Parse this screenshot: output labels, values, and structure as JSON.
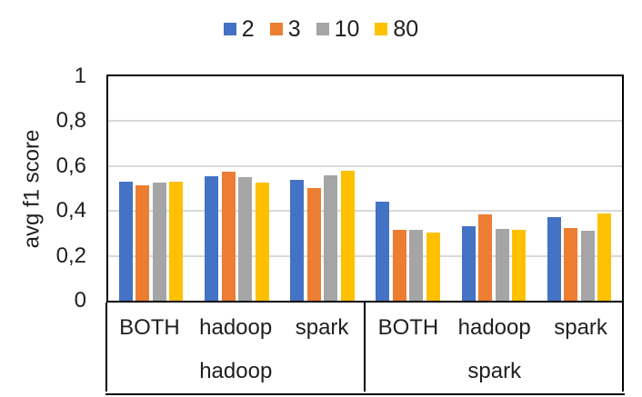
{
  "chart_data": {
    "type": "bar",
    "title": "",
    "ylabel": "avg f1 score",
    "ylim": [
      0,
      1
    ],
    "grid": true,
    "legend_position": "top",
    "yticks": [
      {
        "value": 0,
        "label": "0"
      },
      {
        "value": 0.2,
        "label": "0,2"
      },
      {
        "value": 0.4,
        "label": "0,4"
      },
      {
        "value": 0.6,
        "label": "0,6"
      },
      {
        "value": 0.8,
        "label": "0,8"
      },
      {
        "value": 1,
        "label": "1"
      }
    ],
    "group_labels": [
      "hadoop",
      "spark"
    ],
    "categories": [
      "BOTH",
      "hadoop",
      "spark",
      "BOTH",
      "hadoop",
      "spark"
    ],
    "series": [
      {
        "name": "2",
        "color": "#4472C4",
        "values": [
          0.53,
          0.555,
          0.537,
          0.443,
          0.331,
          0.371
        ]
      },
      {
        "name": "3",
        "color": "#ED7D31",
        "values": [
          0.513,
          0.574,
          0.503,
          0.317,
          0.385,
          0.324
        ]
      },
      {
        "name": "10",
        "color": "#A5A5A5",
        "values": [
          0.528,
          0.549,
          0.557,
          0.317,
          0.321,
          0.312
        ]
      },
      {
        "name": "80",
        "color": "#FFC000",
        "values": [
          0.53,
          0.525,
          0.578,
          0.304,
          0.317,
          0.389
        ]
      }
    ],
    "styles": {
      "gridline_color": "#d9d9d9",
      "axis_color": "#000000",
      "text_color": "#1f1f1f",
      "background": "#ffffff"
    }
  }
}
